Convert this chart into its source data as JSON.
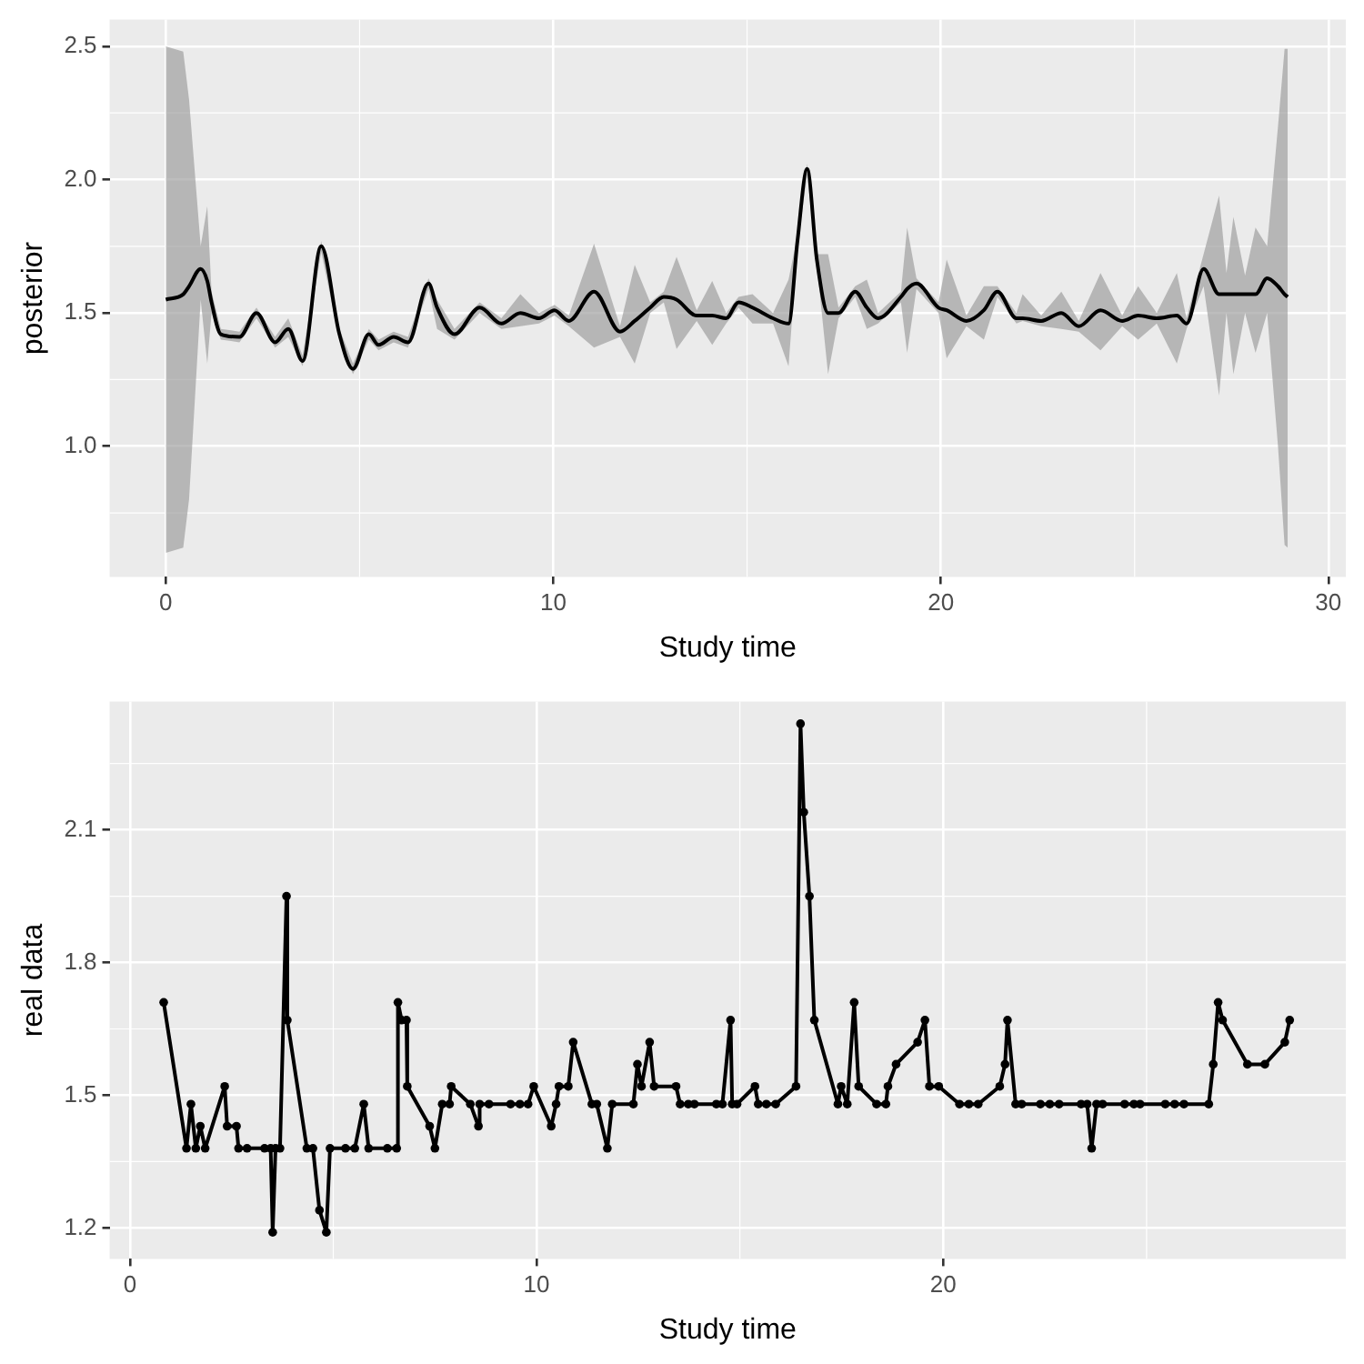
{
  "chart_data": [
    {
      "type": "line",
      "xlabel": "Study time",
      "ylabel": "posterior",
      "xlim": [
        -1.45,
        30.45
      ],
      "xticks": [
        0,
        10,
        20,
        30
      ],
      "ylim": [
        0.51,
        2.6
      ],
      "yticks": [
        {
          "value": 1,
          "label": "1.0"
        },
        1.5,
        {
          "value": 2,
          "label": "2.0"
        },
        2.5
      ],
      "grid": true,
      "legend": false,
      "marker": "none",
      "series": [
        {
          "color": "#000000",
          "x": [
            0,
            0.45,
            0.6,
            0.9,
            1.07,
            1.18,
            1.42,
            1.9,
            2.34,
            2.82,
            3.16,
            3.53,
            4.01,
            4.48,
            4.83,
            5.24,
            5.49,
            5.88,
            6.25,
            6.78,
            7.0,
            7.45,
            8.1,
            8.66,
            9.15,
            9.63,
            10.03,
            10.4,
            11.05,
            11.72,
            12.1,
            12.5,
            12.85,
            13.18,
            13.7,
            14.1,
            14.46,
            14.78,
            15.14,
            15.67,
            16.07,
            16.3,
            16.55,
            16.8,
            17.09,
            17.36,
            17.79,
            18.09,
            18.38,
            18.97,
            19.13,
            19.37,
            19.94,
            20.15,
            20.66,
            21.11,
            21.46,
            21.95,
            22.11,
            22.59,
            23.11,
            23.56,
            24.12,
            24.68,
            25.09,
            25.57,
            26.09,
            26.34,
            26.78,
            27.18,
            27.37,
            27.55,
            27.85,
            28.12,
            28.42,
            28.7,
            28.87,
            28.95
          ],
          "values": [
            1.55,
            1.57,
            1.6,
            1.665,
            1.62,
            1.54,
            1.42,
            1.41,
            1.5,
            1.39,
            1.44,
            1.32,
            1.75,
            1.42,
            1.29,
            1.42,
            1.38,
            1.41,
            1.39,
            1.61,
            1.52,
            1.42,
            1.52,
            1.46,
            1.5,
            1.48,
            1.51,
            1.47,
            1.58,
            1.43,
            1.47,
            1.52,
            1.56,
            1.55,
            1.49,
            1.49,
            1.48,
            1.54,
            1.52,
            1.48,
            1.46,
            1.77,
            2.04,
            1.7,
            1.5,
            1.5,
            1.58,
            1.52,
            1.48,
            1.56,
            1.59,
            1.61,
            1.52,
            1.51,
            1.47,
            1.51,
            1.58,
            1.48,
            1.48,
            1.47,
            1.5,
            1.45,
            1.51,
            1.47,
            1.49,
            1.48,
            1.49,
            1.46,
            1.665,
            1.57,
            1.57,
            1.57,
            1.57,
            1.57,
            1.63,
            1.6,
            1.57,
            1.56
          ],
          "lower": [
            0.6,
            0.62,
            0.8,
            1.55,
            1.31,
            1.5,
            1.4,
            1.39,
            1.48,
            1.37,
            1.41,
            1.3,
            1.73,
            1.4,
            1.27,
            1.4,
            1.36,
            1.39,
            1.37,
            1.59,
            1.44,
            1.4,
            1.5,
            1.44,
            1.45,
            1.46,
            1.49,
            1.45,
            1.37,
            1.41,
            1.31,
            1.5,
            1.54,
            1.365,
            1.47,
            1.38,
            1.46,
            1.52,
            1.46,
            1.46,
            1.3,
            1.75,
            2.02,
            1.68,
            1.27,
            1.48,
            1.56,
            1.44,
            1.46,
            1.54,
            1.35,
            1.59,
            1.5,
            1.33,
            1.45,
            1.4,
            1.56,
            1.46,
            1.47,
            1.45,
            1.44,
            1.43,
            1.36,
            1.45,
            1.4,
            1.46,
            1.31,
            1.44,
            1.6,
            1.19,
            1.5,
            1.27,
            1.5,
            1.35,
            1.5,
            1.0,
            0.63,
            0.62
          ],
          "upper": [
            2.5,
            2.48,
            2.3,
            1.75,
            1.9,
            1.58,
            1.44,
            1.43,
            1.52,
            1.41,
            1.48,
            1.34,
            1.77,
            1.44,
            1.31,
            1.44,
            1.4,
            1.43,
            1.41,
            1.63,
            1.55,
            1.44,
            1.54,
            1.48,
            1.57,
            1.5,
            1.53,
            1.49,
            1.76,
            1.45,
            1.68,
            1.54,
            1.58,
            1.71,
            1.51,
            1.62,
            1.5,
            1.56,
            1.57,
            1.5,
            1.625,
            1.79,
            2.06,
            1.72,
            1.72,
            1.52,
            1.6,
            1.625,
            1.5,
            1.58,
            1.82,
            1.63,
            1.54,
            1.7,
            1.49,
            1.6,
            1.6,
            1.5,
            1.57,
            1.49,
            1.58,
            1.47,
            1.65,
            1.49,
            1.6,
            1.5,
            1.65,
            1.48,
            1.72,
            1.94,
            1.65,
            1.86,
            1.64,
            1.82,
            1.75,
            2.2,
            2.49,
            2.49
          ]
        }
      ]
    },
    {
      "type": "line",
      "xlabel": "Study time",
      "ylabel": "real data",
      "xlim": [
        -0.5,
        29.9
      ],
      "xticks": [
        0,
        10,
        20
      ],
      "ylim": [
        1.13,
        2.39
      ],
      "yticks": [
        1.2,
        1.5,
        1.8,
        2.1
      ],
      "grid": true,
      "legend": false,
      "marker": "circle",
      "series": [
        {
          "color": "#000000",
          "x": [
            0.83,
            1.39,
            1.5,
            1.62,
            1.73,
            1.85,
            2.33,
            2.39,
            2.62,
            2.67,
            2.88,
            3.31,
            3.46,
            3.51,
            3.58,
            3.69,
            3.85,
            3.87,
            4.35,
            4.5,
            4.66,
            4.83,
            4.92,
            5.3,
            5.53,
            5.75,
            5.87,
            6.33,
            6.56,
            6.59,
            6.68,
            6.8,
            6.82,
            7.37,
            7.5,
            7.68,
            7.86,
            7.9,
            8.37,
            8.57,
            8.6,
            8.83,
            9.36,
            9.59,
            9.79,
            9.93,
            10.36,
            10.48,
            10.55,
            10.78,
            10.9,
            11.36,
            11.48,
            11.74,
            11.86,
            12.38,
            12.48,
            12.58,
            12.78,
            12.89,
            13.43,
            13.53,
            13.73,
            13.88,
            14.42,
            14.57,
            14.77,
            14.81,
            14.93,
            15.37,
            15.45,
            15.65,
            15.88,
            16.38,
            16.49,
            16.57,
            16.71,
            16.83,
            17.41,
            17.49,
            17.64,
            17.81,
            17.92,
            18.36,
            18.59,
            18.64,
            18.84,
            19.37,
            19.55,
            19.66,
            19.89,
            20.4,
            20.63,
            20.86,
            21.39,
            21.52,
            21.58,
            21.78,
            21.93,
            22.39,
            22.62,
            22.85,
            23.39,
            23.54,
            23.65,
            23.77,
            23.92,
            24.46,
            24.69,
            24.84,
            25.46,
            25.69,
            25.92,
            26.53,
            26.64,
            26.76,
            26.87,
            27.48,
            27.91,
            28.4,
            28.52
          ],
          "values": [
            1.71,
            1.38,
            1.48,
            1.38,
            1.43,
            1.38,
            1.52,
            1.43,
            1.43,
            1.38,
            1.38,
            1.38,
            1.38,
            1.19,
            1.38,
            1.38,
            1.95,
            1.67,
            1.38,
            1.38,
            1.24,
            1.19,
            1.38,
            1.38,
            1.38,
            1.48,
            1.38,
            1.38,
            1.38,
            1.71,
            1.67,
            1.67,
            1.52,
            1.43,
            1.38,
            1.48,
            1.48,
            1.52,
            1.48,
            1.43,
            1.48,
            1.48,
            1.48,
            1.48,
            1.48,
            1.52,
            1.43,
            1.48,
            1.52,
            1.52,
            1.62,
            1.48,
            1.48,
            1.38,
            1.48,
            1.48,
            1.57,
            1.52,
            1.62,
            1.52,
            1.52,
            1.48,
            1.48,
            1.48,
            1.48,
            1.48,
            1.67,
            1.48,
            1.48,
            1.52,
            1.48,
            1.48,
            1.48,
            1.52,
            2.34,
            2.14,
            1.95,
            1.67,
            1.48,
            1.52,
            1.48,
            1.71,
            1.52,
            1.48,
            1.48,
            1.52,
            1.57,
            1.62,
            1.67,
            1.52,
            1.52,
            1.48,
            1.48,
            1.48,
            1.52,
            1.57,
            1.67,
            1.48,
            1.48,
            1.48,
            1.48,
            1.48,
            1.48,
            1.48,
            1.38,
            1.48,
            1.48,
            1.48,
            1.48,
            1.48,
            1.48,
            1.48,
            1.48,
            1.48,
            1.57,
            1.71,
            1.67,
            1.57,
            1.57,
            1.62,
            1.67
          ]
        }
      ]
    }
  ]
}
